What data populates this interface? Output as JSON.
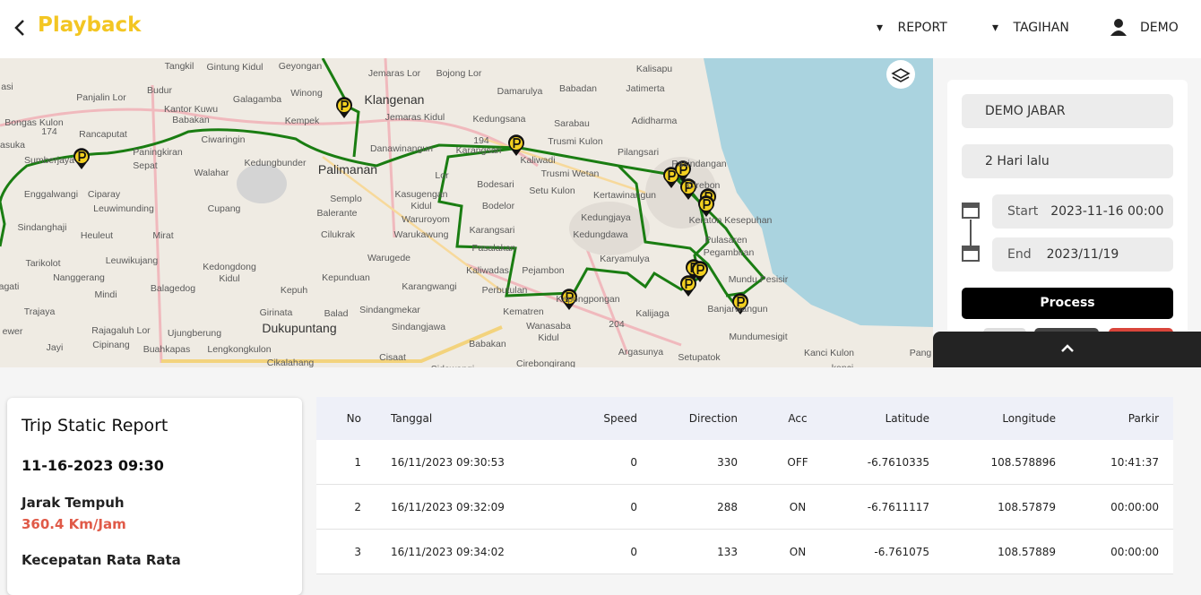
{
  "header": {
    "title": "Playback",
    "menu": [
      "REPORT",
      "TAGIHAN"
    ],
    "user": "DEMO"
  },
  "map": {
    "labels": [
      "Tangkil",
      "Gintung Kidul",
      "Geyongan",
      "Jemaras Lor",
      "Bojong Lor",
      "Kalisapu",
      "asi",
      "Budur",
      "Galagamba",
      "Winong",
      "Klangenan",
      "Damarulya",
      "Babadan",
      "Jatimerta",
      "Panjalin Lor",
      "Kantor Kuwu",
      "Babakan",
      "Kempek",
      "Jemaras Kidul",
      "Kedungsana",
      "Sarabau",
      "Adidharma",
      "Bongas Kulon",
      "Rancaputat",
      "Ciwaringin",
      "Danawinangun",
      "Trusmi Kulon",
      "Pilangsari",
      "asuka",
      "Paningkiran",
      "Sepat",
      "Kedungbunder",
      "Palimanan",
      "Karangsari",
      "Kaliwadi",
      "Trusmi Wetan",
      "Pasindangan",
      "Sumberjaya",
      "Walahar",
      "Lor",
      "Bodesari",
      "Setu Kulon",
      "Kertawinangun",
      "Enggalwangi",
      "Ciparay",
      "Semplo",
      "Kasugengan",
      "Kidul",
      "Bodelor",
      "Leuwimunding",
      "Cupang",
      "Balerante",
      "Waruroyom",
      "Kedungjaya",
      "Keraton Kesepuhan",
      "Sindanghaji",
      "Heuleut",
      "Mirat",
      "Cilukrak",
      "Warukawung",
      "Karangsari",
      "Kedungdawa",
      "Pulasaren",
      "Pasalakan",
      "Pegambiran",
      "Karyamulya",
      "Tarikolot",
      "Leuwikujang",
      "Warugede",
      "Kedongdong",
      "Kidul",
      "Kaliwadas",
      "Pejambon",
      "Nanggerang",
      "Kepunduan",
      "Karangwangi",
      "Mundu Pesisir",
      "agati",
      "Balagedog",
      "Mindi",
      "Kepuh",
      "Perbutulan",
      "Kepongpongan",
      "Girinata",
      "Balad",
      "Sindangmekar",
      "Kematren",
      "Trajaya",
      "Wanasaba",
      "Kidul",
      "Kalijaga",
      "Banjarwangun",
      "Dukupuntang",
      "Sindangjawa",
      "ewer",
      "Rajagaluh Lor",
      "Ujungberung",
      "Mundumesigit",
      "Jayi",
      "Cipinang",
      "Buahkapas",
      "Lengkongkulon",
      "Babakan",
      "Argasunya",
      "Kanci Kulon",
      "Pang",
      "Cikalahang",
      "Cisaat",
      "Cirebongirang",
      "Sidawangi",
      "Setupatok",
      "kanci",
      "Cirebon",
      "194",
      "204",
      "174"
    ]
  },
  "panel": {
    "company": "DEMO JABAR",
    "period": "2 Hari lalu",
    "start_label": "Start",
    "start": "2023-11-16 00:00",
    "end_label": "End",
    "end": "2023/11/19",
    "process": "Process"
  },
  "report": {
    "title": "Trip Static Report",
    "datetime": "11-16-2023 09:30",
    "distance_label": "Jarak Tempuh",
    "distance": "360.4 Km/Jam",
    "avg_speed_label": "Kecepatan Rata Rata"
  },
  "table": {
    "columns": [
      "No",
      "Tanggal",
      "Speed",
      "Direction",
      "Acc",
      "Latitude",
      "Longitude",
      "Parkir"
    ],
    "rows": [
      [
        "1",
        "16/11/2023 09:30:53",
        "0",
        "330",
        "OFF",
        "-6.7610335",
        "108.578896",
        "10:41:37"
      ],
      [
        "2",
        "16/11/2023 09:32:09",
        "0",
        "288",
        "ON",
        "-6.7611117",
        "108.57879",
        "00:00:00"
      ],
      [
        "3",
        "16/11/2023 09:34:02",
        "0",
        "133",
        "ON",
        "-6.761075",
        "108.57889",
        "00:00:00"
      ]
    ]
  }
}
